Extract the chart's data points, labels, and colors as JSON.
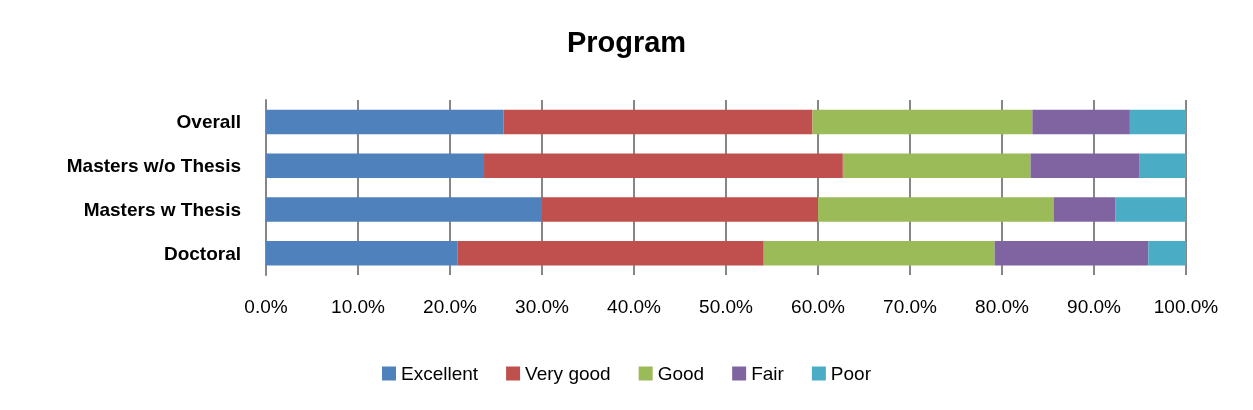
{
  "chart_data": {
    "type": "bar",
    "title": "Program",
    "orientation": "horizontal",
    "stacked": true,
    "categories": [
      "Overall",
      "Masters w/o Thesis",
      "Masters w Thesis",
      "Doctoral"
    ],
    "series": [
      {
        "name": "Excellent",
        "color": "#4f81bd",
        "values": [
          25.8,
          23.7,
          30.0,
          20.8
        ]
      },
      {
        "name": "Very good",
        "color": "#c0504d",
        "values": [
          33.6,
          39.0,
          30.0,
          33.3
        ]
      },
      {
        "name": "Good",
        "color": "#9bbb59",
        "values": [
          23.9,
          20.4,
          25.6,
          25.1
        ]
      },
      {
        "name": "Fair",
        "color": "#8064a2",
        "values": [
          10.6,
          11.8,
          6.7,
          16.7
        ]
      },
      {
        "name": "Poor",
        "color": "#4bacc6",
        "values": [
          6.1,
          5.1,
          7.7,
          4.1
        ]
      }
    ],
    "xlim": [
      0,
      100
    ],
    "xticks": [
      {
        "value": 0,
        "label": "0.0%"
      },
      {
        "value": 10,
        "label": "10.0%"
      },
      {
        "value": 20,
        "label": "20.0%"
      },
      {
        "value": 30,
        "label": "30.0%"
      },
      {
        "value": 40,
        "label": "40.0%"
      },
      {
        "value": 50,
        "label": "50.0%"
      },
      {
        "value": 60,
        "label": "60.0%"
      },
      {
        "value": 70,
        "label": "70.0%"
      },
      {
        "value": 80,
        "label": "80.0%"
      },
      {
        "value": 90,
        "label": "90.0%"
      },
      {
        "value": 100,
        "label": "100.0%"
      }
    ],
    "grid": "x",
    "legend": "bottom"
  }
}
